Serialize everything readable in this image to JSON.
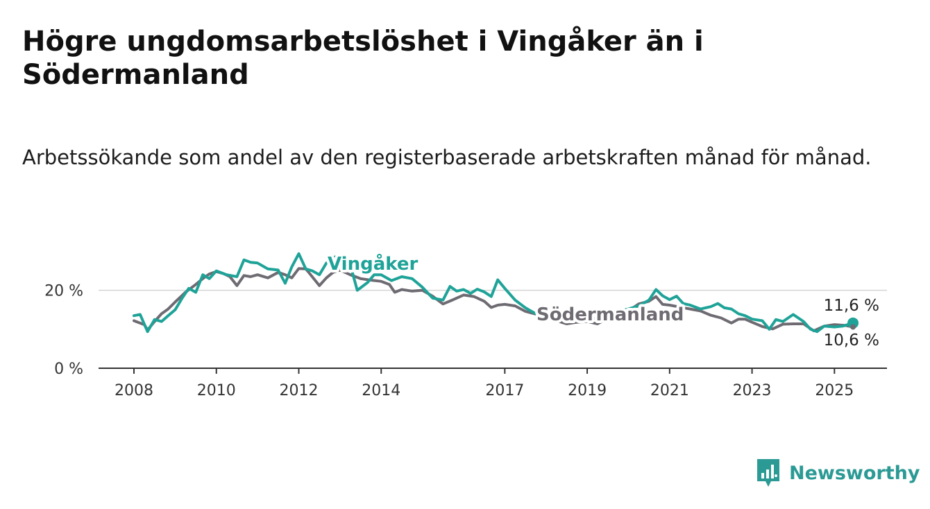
{
  "header": {
    "title": "Högre ungdomsarbetslöshet i Vingåker än i Södermanland",
    "subtitle": "Arbetssökande som andel av den registerbaserade arbetskraften månad för månad."
  },
  "brand": {
    "name": "Newsworthy",
    "color": "#2b9a95"
  },
  "chart_data": {
    "type": "line",
    "ylim": [
      0,
      34
    ],
    "xlim": [
      2008,
      2025.5
    ],
    "y_ticks": [
      {
        "value": 0,
        "label": "0 %"
      },
      {
        "value": 20,
        "label": "20 %"
      }
    ],
    "x_ticks": [
      {
        "value": 2008,
        "label": "2008"
      },
      {
        "value": 2010,
        "label": "2010"
      },
      {
        "value": 2012,
        "label": "2012"
      },
      {
        "value": 2014,
        "label": "2014"
      },
      {
        "value": 2017,
        "label": "2017"
      },
      {
        "value": 2019,
        "label": "2019"
      },
      {
        "value": 2021,
        "label": "2021"
      },
      {
        "value": 2023,
        "label": "2023"
      },
      {
        "value": 2025,
        "label": "2025"
      }
    ],
    "grid": "horizontal",
    "series": [
      {
        "name": "Södermanland",
        "color": "#6e6b72",
        "end_label": "10,6 %",
        "points": [
          [
            2008.0,
            12.2
          ],
          [
            2008.25,
            11.2
          ],
          [
            2008.33,
            9.8
          ],
          [
            2008.5,
            12.0
          ],
          [
            2008.67,
            14.0
          ],
          [
            2008.83,
            15.2
          ],
          [
            2009.0,
            17.0
          ],
          [
            2009.25,
            19.5
          ],
          [
            2009.5,
            21.5
          ],
          [
            2009.67,
            23.0
          ],
          [
            2009.83,
            24.2
          ],
          [
            2010.0,
            24.8
          ],
          [
            2010.17,
            24.3
          ],
          [
            2010.33,
            23.5
          ],
          [
            2010.5,
            21.2
          ],
          [
            2010.67,
            23.8
          ],
          [
            2010.83,
            23.5
          ],
          [
            2011.0,
            24.0
          ],
          [
            2011.25,
            23.2
          ],
          [
            2011.5,
            24.6
          ],
          [
            2011.67,
            24.0
          ],
          [
            2011.83,
            23.2
          ],
          [
            2012.0,
            25.6
          ],
          [
            2012.17,
            25.5
          ],
          [
            2012.25,
            24.5
          ],
          [
            2012.5,
            21.2
          ],
          [
            2012.67,
            23.2
          ],
          [
            2012.83,
            24.6
          ],
          [
            2013.0,
            25.2
          ],
          [
            2013.25,
            24.0
          ],
          [
            2013.5,
            23.0
          ],
          [
            2013.75,
            22.6
          ],
          [
            2014.0,
            22.3
          ],
          [
            2014.2,
            21.5
          ],
          [
            2014.33,
            19.5
          ],
          [
            2014.5,
            20.2
          ],
          [
            2014.75,
            19.8
          ],
          [
            2015.0,
            20.0
          ],
          [
            2015.25,
            18.5
          ],
          [
            2015.5,
            16.5
          ],
          [
            2015.75,
            17.6
          ],
          [
            2016.0,
            18.8
          ],
          [
            2016.25,
            18.4
          ],
          [
            2016.5,
            17.2
          ],
          [
            2016.67,
            15.6
          ],
          [
            2016.83,
            16.2
          ],
          [
            2017.0,
            16.4
          ],
          [
            2017.25,
            16.0
          ],
          [
            2017.5,
            14.6
          ],
          [
            2017.75,
            13.9
          ],
          [
            2018.0,
            13.3
          ],
          [
            2018.25,
            12.2
          ],
          [
            2018.5,
            11.4
          ],
          [
            2018.75,
            11.8
          ],
          [
            2019.0,
            12.0
          ],
          [
            2019.25,
            11.4
          ],
          [
            2019.5,
            12.8
          ],
          [
            2019.75,
            13.7
          ],
          [
            2020.0,
            14.7
          ],
          [
            2020.25,
            16.5
          ],
          [
            2020.5,
            17.2
          ],
          [
            2020.67,
            18.4
          ],
          [
            2020.83,
            16.4
          ],
          [
            2021.0,
            16.2
          ],
          [
            2021.25,
            15.7
          ],
          [
            2021.5,
            15.2
          ],
          [
            2021.75,
            14.7
          ],
          [
            2022.0,
            13.6
          ],
          [
            2022.25,
            12.9
          ],
          [
            2022.5,
            11.6
          ],
          [
            2022.67,
            12.6
          ],
          [
            2022.83,
            12.6
          ],
          [
            2023.0,
            11.8
          ],
          [
            2023.25,
            10.7
          ],
          [
            2023.5,
            10.1
          ],
          [
            2023.75,
            11.3
          ],
          [
            2024.0,
            11.4
          ],
          [
            2024.25,
            11.4
          ],
          [
            2024.5,
            9.6
          ],
          [
            2024.75,
            10.8
          ],
          [
            2025.0,
            11.2
          ],
          [
            2025.25,
            11.0
          ],
          [
            2025.45,
            10.6
          ]
        ]
      },
      {
        "name": "Vingåker",
        "color": "#1fa398",
        "end_label": "11,6 %",
        "points": [
          [
            2008.0,
            13.5
          ],
          [
            2008.15,
            13.8
          ],
          [
            2008.33,
            9.4
          ],
          [
            2008.5,
            12.5
          ],
          [
            2008.67,
            12.0
          ],
          [
            2008.83,
            13.5
          ],
          [
            2009.0,
            15.0
          ],
          [
            2009.17,
            18.0
          ],
          [
            2009.33,
            20.5
          ],
          [
            2009.5,
            19.5
          ],
          [
            2009.67,
            24.0
          ],
          [
            2009.83,
            23.0
          ],
          [
            2010.0,
            25.0
          ],
          [
            2010.25,
            24.0
          ],
          [
            2010.5,
            23.5
          ],
          [
            2010.67,
            27.8
          ],
          [
            2010.83,
            27.2
          ],
          [
            2011.0,
            27.0
          ],
          [
            2011.25,
            25.5
          ],
          [
            2011.5,
            25.2
          ],
          [
            2011.67,
            21.8
          ],
          [
            2011.83,
            26.0
          ],
          [
            2012.0,
            29.4
          ],
          [
            2012.17,
            25.5
          ],
          [
            2012.33,
            25.0
          ],
          [
            2012.5,
            24.0
          ],
          [
            2012.67,
            27.0
          ],
          [
            2012.83,
            28.4
          ],
          [
            2013.0,
            29.0
          ],
          [
            2013.25,
            26.5
          ],
          [
            2013.42,
            20.0
          ],
          [
            2013.67,
            22.0
          ],
          [
            2013.83,
            24.0
          ],
          [
            2014.0,
            24.0
          ],
          [
            2014.25,
            22.5
          ],
          [
            2014.5,
            23.5
          ],
          [
            2014.75,
            23.0
          ],
          [
            2015.0,
            20.8
          ],
          [
            2015.25,
            18.0
          ],
          [
            2015.5,
            17.5
          ],
          [
            2015.67,
            21.0
          ],
          [
            2015.83,
            19.8
          ],
          [
            2016.0,
            20.2
          ],
          [
            2016.17,
            19.2
          ],
          [
            2016.33,
            20.3
          ],
          [
            2016.5,
            19.6
          ],
          [
            2016.67,
            18.4
          ],
          [
            2016.83,
            22.7
          ],
          [
            2017.0,
            20.5
          ],
          [
            2017.25,
            17.5
          ],
          [
            2017.5,
            15.5
          ],
          [
            2017.75,
            14.0
          ],
          [
            2018.0,
            13.5
          ],
          [
            2018.25,
            13.0
          ],
          [
            2018.5,
            12.5
          ],
          [
            2018.75,
            12.8
          ],
          [
            2019.0,
            13.4
          ],
          [
            2019.25,
            12.6
          ],
          [
            2019.5,
            14.0
          ],
          [
            2019.75,
            14.6
          ],
          [
            2020.0,
            15.2
          ],
          [
            2020.25,
            16.0
          ],
          [
            2020.5,
            17.5
          ],
          [
            2020.67,
            20.2
          ],
          [
            2020.83,
            18.6
          ],
          [
            2021.0,
            17.6
          ],
          [
            2021.17,
            18.5
          ],
          [
            2021.33,
            16.6
          ],
          [
            2021.5,
            16.2
          ],
          [
            2021.75,
            15.2
          ],
          [
            2022.0,
            15.8
          ],
          [
            2022.17,
            16.6
          ],
          [
            2022.33,
            15.5
          ],
          [
            2022.5,
            15.2
          ],
          [
            2022.67,
            14.0
          ],
          [
            2022.83,
            13.5
          ],
          [
            2023.0,
            12.6
          ],
          [
            2023.25,
            12.2
          ],
          [
            2023.42,
            10.0
          ],
          [
            2023.58,
            12.5
          ],
          [
            2023.75,
            12.0
          ],
          [
            2024.0,
            13.8
          ],
          [
            2024.25,
            12.0
          ],
          [
            2024.42,
            10.0
          ],
          [
            2024.58,
            9.4
          ],
          [
            2024.75,
            10.8
          ],
          [
            2025.0,
            10.6
          ],
          [
            2025.2,
            10.8
          ],
          [
            2025.45,
            11.6
          ]
        ]
      }
    ]
  }
}
